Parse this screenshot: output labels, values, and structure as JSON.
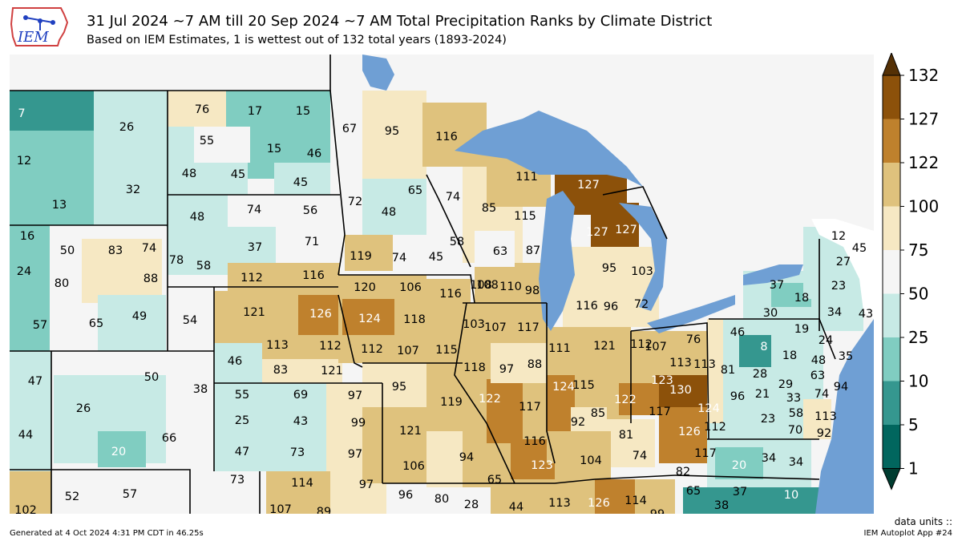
{
  "header": {
    "title": "31 Jul 2024 ~7 AM till 20 Sep 2024 ~7 AM Total Precipitation Ranks by Climate District",
    "subtitle": "Based on IEM Estimates, 1 is wettest out of 132 total years (1893-2024)",
    "logo_text": "IEM"
  },
  "colorbar": {
    "ticks": [
      "1",
      "5",
      "10",
      "25",
      "50",
      "75",
      "100",
      "122",
      "127",
      "132"
    ],
    "colors": [
      "#003c30",
      "#01665e",
      "#35978f",
      "#80cdc1",
      "#c7eae5",
      "#f5f5f5",
      "#f6e8c3",
      "#dfc27d",
      "#bf812d",
      "#8c510a",
      "#543005"
    ]
  },
  "map": {
    "land_color": "#f5f5f5",
    "water_color": "#6f9fd4",
    "ranks": [
      "7",
      "26",
      "12",
      "32",
      "13",
      "76",
      "17",
      "15",
      "55",
      "15",
      "46",
      "48",
      "45",
      "45",
      "67",
      "95",
      "116",
      "16",
      "50",
      "83",
      "74",
      "24",
      "80",
      "88",
      "57",
      "65",
      "49",
      "78",
      "58",
      "48",
      "74",
      "56",
      "37",
      "71",
      "112",
      "116",
      "72",
      "48",
      "65",
      "74",
      "58",
      "85",
      "111",
      "127",
      "115",
      "127",
      "127",
      "63",
      "87",
      "119",
      "74",
      "45",
      "108",
      "95",
      "103",
      "108",
      "110",
      "98",
      "116",
      "96",
      "72",
      "54",
      "121",
      "126",
      "120",
      "106",
      "116",
      "124",
      "118",
      "103",
      "107",
      "117",
      "113",
      "112",
      "112",
      "107",
      "115",
      "47",
      "50",
      "38",
      "26",
      "66",
      "44",
      "20",
      "46",
      "83",
      "121",
      "55",
      "69",
      "97",
      "25",
      "43",
      "99",
      "47",
      "73",
      "97",
      "95",
      "119",
      "121",
      "106",
      "94",
      "118",
      "97",
      "88",
      "122",
      "117",
      "116",
      "111",
      "121",
      "112",
      "107",
      "76",
      "113",
      "124",
      "115",
      "123",
      "113",
      "130",
      "122",
      "117",
      "124",
      "112",
      "126",
      "117",
      "92",
      "85",
      "81",
      "74",
      "82",
      "123",
      "104",
      "65",
      "96",
      "80",
      "28",
      "44",
      "113",
      "126",
      "114",
      "99",
      "73",
      "114",
      "97",
      "52",
      "57",
      "102",
      "107",
      "89",
      "12",
      "45",
      "27",
      "23",
      "37",
      "18",
      "30",
      "34",
      "43",
      "46",
      "8",
      "19",
      "24",
      "18",
      "48",
      "35",
      "28",
      "29",
      "63",
      "81",
      "96",
      "21",
      "33",
      "74",
      "94",
      "113",
      "58",
      "70",
      "92",
      "23",
      "34",
      "20",
      "34",
      "65",
      "37",
      "10",
      "38",
      "7"
    ]
  },
  "footer": {
    "units": "data units ::",
    "generated": "Generated at 4 Oct 2024 4:31 PM CDT in 46.25s",
    "app": "IEM Autoplot App #24"
  }
}
